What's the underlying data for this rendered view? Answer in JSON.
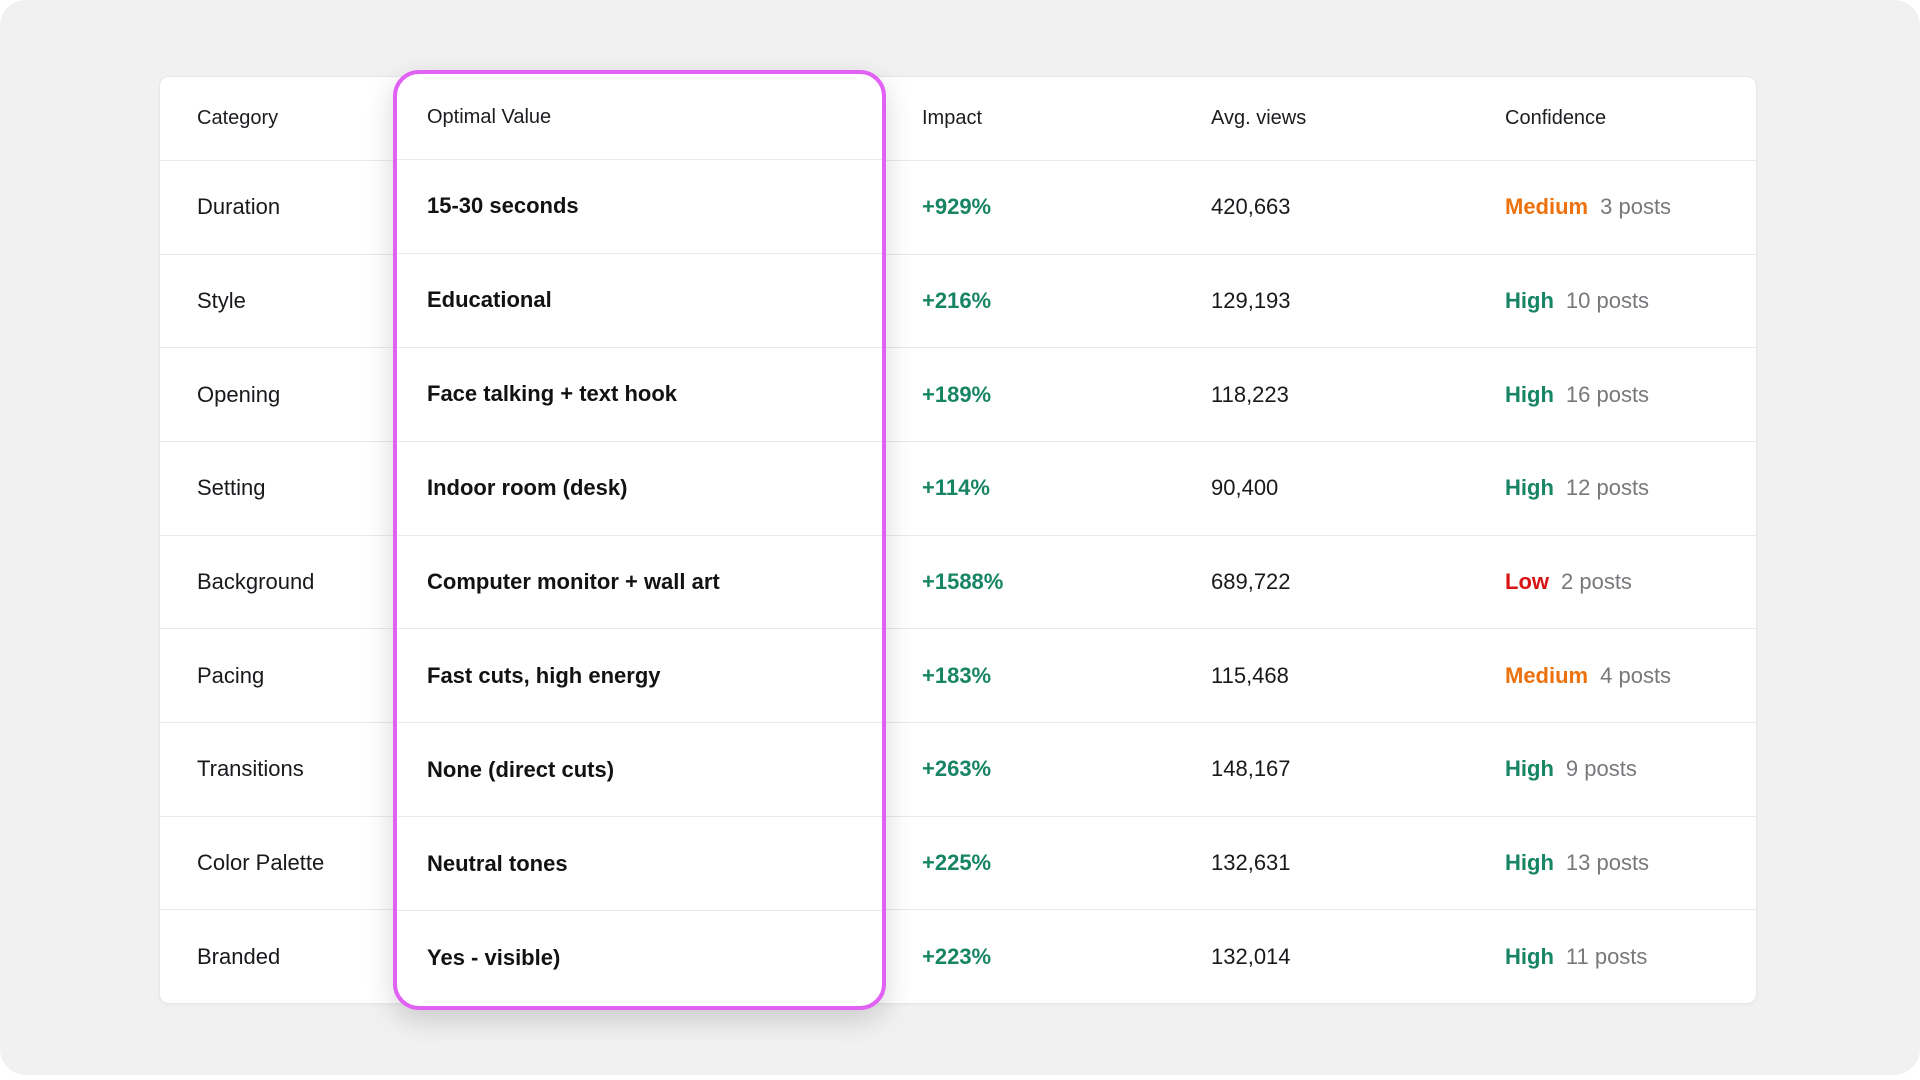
{
  "header": {
    "columns": [
      {
        "label": "Category"
      },
      {
        "label": "Optimal Value"
      },
      {
        "label": "Impact"
      },
      {
        "label": "Avg. views"
      },
      {
        "label": "Confidence"
      }
    ]
  },
  "rows": [
    {
      "category": "Duration",
      "optimal_value": "15-30 seconds",
      "impact": "+929%",
      "avg_views": "420,663",
      "confidence": "Medium",
      "posts": "3 posts"
    },
    {
      "category": "Style",
      "optimal_value": "Educational",
      "impact": "+216%",
      "avg_views": "129,193",
      "confidence": "High",
      "posts": "10 posts"
    },
    {
      "category": "Opening",
      "optimal_value": "Face talking + text hook",
      "impact": "+189%",
      "avg_views": "118,223",
      "confidence": "High",
      "posts": "16 posts"
    },
    {
      "category": "Setting",
      "optimal_value": "Indoor room (desk)",
      "impact": "+114%",
      "avg_views": "90,400",
      "confidence": "High",
      "posts": "12 posts"
    },
    {
      "category": "Background",
      "optimal_value": "Computer monitor + wall art",
      "impact": "+1588%",
      "avg_views": "689,722",
      "confidence": "Low",
      "posts": "2 posts"
    },
    {
      "category": "Pacing",
      "optimal_value": "Fast cuts, high energy",
      "impact": "+183%",
      "avg_views": "115,468",
      "confidence": "Medium",
      "posts": "4 posts"
    },
    {
      "category": "Transitions",
      "optimal_value": "None (direct cuts)",
      "impact": "+263%",
      "avg_views": "148,167",
      "confidence": "High",
      "posts": "9 posts"
    },
    {
      "category": "Color Palette",
      "optimal_value": "Neutral tones",
      "impact": "+225%",
      "avg_views": "132,631",
      "confidence": "High",
      "posts": "13 posts"
    },
    {
      "category": "Branded",
      "optimal_value": "Yes - visible)",
      "impact": "+223%",
      "avg_views": "132,014",
      "confidence": "High",
      "posts": "11 posts"
    }
  ],
  "highlight": {
    "column": "Optimal Value",
    "border_color": "#e061f3"
  },
  "colors": {
    "impact_green": "#178563",
    "confidence_high": "#178563",
    "confidence_medium": "#ed720e",
    "confidence_low": "#d91414",
    "posts_gray": "#76787b",
    "page_background": "#f1f1f2",
    "card_background": "#ffffff"
  }
}
